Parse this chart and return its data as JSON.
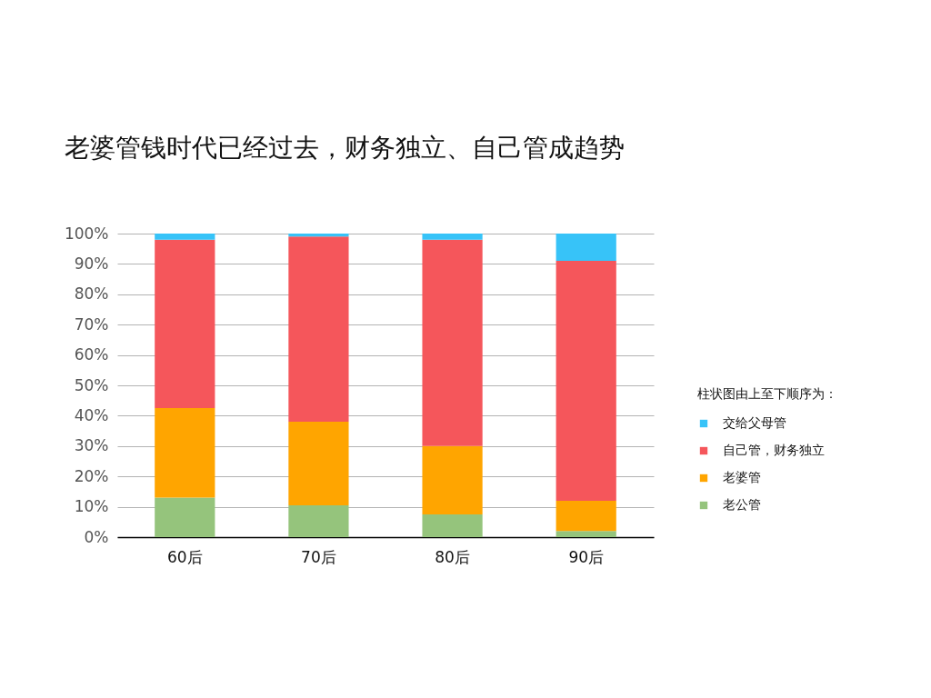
{
  "chart_data": {
    "type": "bar",
    "title": "老婆管钱时代已经过去，财务独立、自己管成趋势",
    "legend_title": "柱状图由上至下顺序为：",
    "categories": [
      "60后",
      "70后",
      "80后",
      "90后"
    ],
    "stacked": true,
    "series": [
      {
        "name": "老公管",
        "color": "#95c47c",
        "values": [
          13,
          10.5,
          7.5,
          2
        ]
      },
      {
        "name": "老婆管",
        "color": "#ffa500",
        "values": [
          29.5,
          27.5,
          22.5,
          10
        ]
      },
      {
        "name": "自己管，财务独立",
        "color": "#f5565b",
        "values": [
          55.5,
          61,
          68,
          79
        ]
      },
      {
        "name": "交给父母管",
        "color": "#37c3f8",
        "values": [
          2,
          1,
          2,
          9
        ]
      }
    ],
    "ylim": [
      0,
      100
    ],
    "yticks": [
      {
        "value": 0,
        "label": "0%"
      },
      {
        "value": 10,
        "label": "10%"
      },
      {
        "value": 20,
        "label": "20%"
      },
      {
        "value": 30,
        "label": "30%"
      },
      {
        "value": 40,
        "label": "40%"
      },
      {
        "value": 50,
        "label": "50%"
      },
      {
        "value": 60,
        "label": "60%"
      },
      {
        "value": 70,
        "label": "70%"
      },
      {
        "value": 80,
        "label": "80%"
      },
      {
        "value": 90,
        "label": "90%"
      },
      {
        "value": 100,
        "label": "100%"
      }
    ],
    "grid": "y",
    "legend": "right"
  }
}
